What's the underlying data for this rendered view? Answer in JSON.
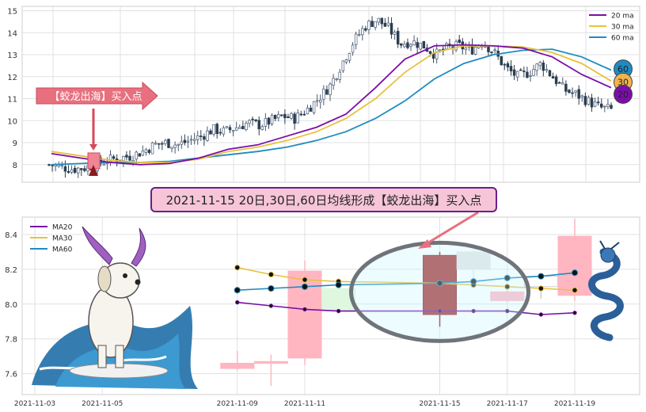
{
  "chart_data": [
    {
      "type": "candlestick",
      "panel": "top",
      "ylim": [
        7.2,
        15.2
      ],
      "yticks": [
        8,
        9,
        10,
        11,
        12,
        13,
        14,
        15
      ],
      "legend": {
        "placement": "top-right",
        "entries": [
          {
            "label": "20 ma",
            "color": "#7a0fa8"
          },
          {
            "label": "30 ma",
            "color": "#e7c23e"
          },
          {
            "label": "60 ma",
            "color": "#1f8bc2"
          }
        ]
      },
      "candles": {
        "up_color": "#4a5a73",
        "down_color": "#2c3e50"
      },
      "price_path": [
        8.0,
        7.9,
        7.8,
        7.85,
        8.0,
        8.2,
        8.3,
        8.4,
        8.6,
        8.9,
        9.0,
        8.9,
        9.1,
        9.3,
        9.6,
        9.5,
        9.7,
        9.9,
        9.8,
        10.0,
        10.2,
        10.1,
        10.5,
        11.0,
        11.6,
        12.6,
        13.6,
        14.3,
        14.6,
        14.2,
        13.5,
        13.6,
        13.4,
        13.0,
        13.3,
        13.4,
        13.2,
        13.6,
        13.1,
        12.4,
        12.0,
        12.2,
        12.6,
        12.0,
        11.4,
        11.2,
        10.9,
        10.6,
        10.5
      ],
      "ma_lines": {
        "ma20": [
          8.5,
          8.3,
          8.1,
          8.0,
          8.05,
          8.3,
          8.7,
          8.9,
          9.3,
          9.7,
          10.3,
          11.5,
          12.8,
          13.4,
          13.45,
          13.4,
          13.3,
          12.9,
          12.1,
          11.5
        ],
        "ma30": [
          8.6,
          8.4,
          8.2,
          8.1,
          8.1,
          8.25,
          8.6,
          8.8,
          9.1,
          9.5,
          10.1,
          11.0,
          12.2,
          13.1,
          13.4,
          13.4,
          13.35,
          13.1,
          12.6,
          11.8
        ],
        "ma60": [
          8.0,
          8.05,
          8.1,
          8.1,
          8.15,
          8.3,
          8.45,
          8.6,
          8.8,
          9.1,
          9.5,
          10.1,
          10.9,
          11.9,
          12.6,
          13.0,
          13.2,
          13.25,
          12.9,
          12.3
        ]
      },
      "badges": [
        {
          "label": "60",
          "value": 12.35,
          "color": "#1f8bc2"
        },
        {
          "label": "30",
          "value": 11.75,
          "color": "#f2b34f"
        },
        {
          "label": "20",
          "value": 11.2,
          "color": "#7a0fa8"
        }
      ],
      "buy_marker": {
        "label": "【蛟龙出海】买入点",
        "price": 7.9
      }
    },
    {
      "type": "candlestick",
      "panel": "bottom",
      "ylim": [
        7.48,
        8.5
      ],
      "yticks": [
        7.6,
        7.8,
        8.0,
        8.2,
        8.4
      ],
      "xticks": [
        "2021-11-03",
        "2021-11-05",
        "2021-11-09",
        "2021-11-11",
        "2021-11-15",
        "2021-11-17",
        "2021-11-19"
      ],
      "legend": {
        "placement": "top-left",
        "entries": [
          {
            "label": "MA20",
            "color": "#7a0fa8"
          },
          {
            "label": "MA30",
            "color": "#e7c23e"
          },
          {
            "label": "MA60",
            "color": "#1f8bc2"
          }
        ]
      },
      "candles": [
        {
          "date": "2021-11-09",
          "open": 7.66,
          "close": 7.63,
          "high": 7.73,
          "low": 7.62,
          "color": "#ffb6c1"
        },
        {
          "date": "2021-11-10",
          "open": 7.67,
          "close": 7.66,
          "high": 7.71,
          "low": 7.53,
          "color": "#ffb6c1"
        },
        {
          "date": "2021-11-11",
          "open": 7.69,
          "close": 8.19,
          "high": 8.25,
          "low": 7.65,
          "color": "#ffb6c1"
        },
        {
          "date": "2021-11-12",
          "open": 8.09,
          "close": 7.96,
          "high": 8.1,
          "low": 7.94,
          "color": "#dff7df"
        },
        {
          "date": "2021-11-15",
          "open": 7.94,
          "close": 8.28,
          "high": 8.3,
          "low": 7.87,
          "color": "#a52a2a"
        },
        {
          "date": "2021-11-16",
          "open": 8.3,
          "close": 8.2,
          "high": 8.31,
          "low": 8.15,
          "color": "#e4e4e4"
        },
        {
          "date": "2021-11-17",
          "open": 8.02,
          "close": 8.07,
          "high": 8.08,
          "low": 8.01,
          "color": "#ffb6c1"
        },
        {
          "date": "2021-11-18",
          "open": 8.16,
          "close": 8.1,
          "high": 8.17,
          "low": 8.03,
          "color": "#ffffff"
        },
        {
          "date": "2021-11-19",
          "open": 8.05,
          "close": 8.39,
          "high": 8.49,
          "low": 8.02,
          "color": "#ffb6c1"
        }
      ],
      "ma20": [
        {
          "date": "2021-11-09",
          "v": 8.01
        },
        {
          "date": "2021-11-10",
          "v": 7.99
        },
        {
          "date": "2021-11-11",
          "v": 7.97
        },
        {
          "date": "2021-11-12",
          "v": 7.96
        },
        {
          "date": "2021-11-15",
          "v": 7.96
        },
        {
          "date": "2021-11-16",
          "v": 7.96
        },
        {
          "date": "2021-11-17",
          "v": 7.96
        },
        {
          "date": "2021-11-18",
          "v": 7.94
        },
        {
          "date": "2021-11-19",
          "v": 7.95
        }
      ],
      "ma30": [
        {
          "date": "2021-11-09",
          "v": 8.21
        },
        {
          "date": "2021-11-10",
          "v": 8.17
        },
        {
          "date": "2021-11-11",
          "v": 8.14
        },
        {
          "date": "2021-11-12",
          "v": 8.13
        },
        {
          "date": "2021-11-15",
          "v": 8.12
        },
        {
          "date": "2021-11-16",
          "v": 8.11
        },
        {
          "date": "2021-11-17",
          "v": 8.1
        },
        {
          "date": "2021-11-18",
          "v": 8.09
        },
        {
          "date": "2021-11-19",
          "v": 8.08
        }
      ],
      "ma60": [
        {
          "date": "2021-11-09",
          "v": 8.08
        },
        {
          "date": "2021-11-10",
          "v": 8.09
        },
        {
          "date": "2021-11-11",
          "v": 8.1
        },
        {
          "date": "2021-11-12",
          "v": 8.11
        },
        {
          "date": "2021-11-15",
          "v": 8.12
        },
        {
          "date": "2021-11-16",
          "v": 8.13
        },
        {
          "date": "2021-11-17",
          "v": 8.15
        },
        {
          "date": "2021-11-18",
          "v": 8.16
        },
        {
          "date": "2021-11-19",
          "v": 8.18
        }
      ],
      "highlight_date": "2021-11-15"
    }
  ],
  "callout": {
    "text": "2021-11-15 20日,30日,60日均线形成【蛟龙出海】买入点"
  }
}
